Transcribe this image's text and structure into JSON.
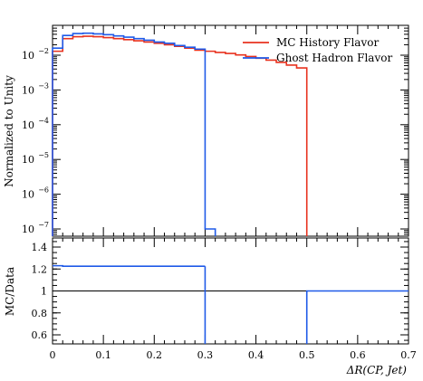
{
  "chart_data": [
    {
      "type": "line",
      "panel": "main",
      "ylabel": "Normalized to Unity",
      "yscale": "log",
      "xlim": [
        0,
        0.7
      ],
      "ylim": [
        5e-08,
        0.06
      ],
      "y_ticks": [
        {
          "value": 1e-07,
          "label": "10",
          "exp": "−7"
        },
        {
          "value": 1e-06,
          "label": "10",
          "exp": "−6"
        },
        {
          "value": 1e-05,
          "label": "10",
          "exp": "−5"
        },
        {
          "value": 0.0001,
          "label": "10",
          "exp": "−4"
        },
        {
          "value": 0.001,
          "label": "10",
          "exp": "−3"
        },
        {
          "value": 0.01,
          "label": "10",
          "exp": "−2"
        }
      ],
      "legend_position": "top-right",
      "series": [
        {
          "name": "MC History Flavor",
          "color": "#e8321f",
          "bin_edges": [
            0,
            0.02,
            0.04,
            0.06,
            0.08,
            0.1,
            0.12,
            0.14,
            0.16,
            0.18,
            0.2,
            0.22,
            0.24,
            0.26,
            0.28,
            0.3,
            0.32,
            0.34,
            0.36,
            0.38,
            0.4,
            0.42,
            0.44,
            0.46,
            0.48,
            0.5
          ],
          "values": [
            0.013,
            0.03,
            0.034,
            0.035,
            0.034,
            0.032,
            0.03,
            0.028,
            0.026,
            0.024,
            0.022,
            0.02,
            0.018,
            0.016,
            0.014,
            0.013,
            0.012,
            0.0112,
            0.0102,
            0.0092,
            0.0082,
            0.0072,
            0.0062,
            0.0052,
            0.0043
          ]
        },
        {
          "name": "Ghost Hadron Flavor",
          "color": "#1f5ae8",
          "bin_edges": [
            0,
            0.02,
            0.04,
            0.06,
            0.08,
            0.1,
            0.12,
            0.14,
            0.16,
            0.18,
            0.2,
            0.22,
            0.24,
            0.26,
            0.28,
            0.3,
            0.32
          ],
          "values": [
            0.016,
            0.037,
            0.042,
            0.043,
            0.041,
            0.039,
            0.036,
            0.033,
            0.03,
            0.027,
            0.024,
            0.022,
            0.019,
            0.017,
            0.015,
            1e-07
          ]
        }
      ]
    },
    {
      "type": "line",
      "panel": "ratio",
      "ylabel": "MC/Data",
      "xlabel": "ΔR(CP, Jet)",
      "xlim": [
        0,
        0.7
      ],
      "ylim": [
        0.5,
        1.5
      ],
      "x_ticks": [
        "0",
        "0.1",
        "0.2",
        "0.3",
        "0.4",
        "0.5",
        "0.6",
        "0.7"
      ],
      "y_ticks": [
        "0.6",
        "0.8",
        "1",
        "1.2",
        "1.4"
      ],
      "reference_line": 1,
      "series": [
        {
          "name": "",
          "color": "#1f5ae8",
          "segments": [
            {
              "x": [
                0,
                0.02,
                0.02,
                0.3
              ],
              "y": [
                1.23,
                1.23,
                1.225,
                1.225
              ]
            },
            {
              "x": [
                0.3,
                0.3
              ],
              "y": [
                1.225,
                0.5
              ]
            },
            {
              "x": [
                0.5,
                0.5,
                0.7
              ],
              "y": [
                0.5,
                1.0,
                1.0
              ]
            }
          ]
        }
      ]
    }
  ]
}
